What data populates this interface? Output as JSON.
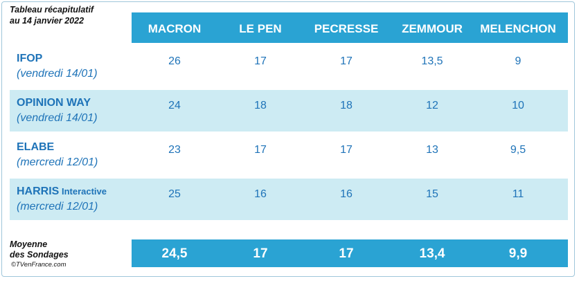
{
  "title_lines": [
    "Tableau récapitulatif",
    "au 14 janvier 2022"
  ],
  "candidates": [
    "MACRON",
    "LE PEN",
    "PECRESSE",
    "ZEMMOUR",
    "MELENCHON"
  ],
  "polls": [
    {
      "name": "IFOP",
      "name_suffix": "",
      "date": "(vendredi 14/01)",
      "values": [
        "26",
        "17",
        "17",
        "13,5",
        "9"
      ]
    },
    {
      "name": "OPINION WAY",
      "name_suffix": "",
      "date": "(vendredi 14/01)",
      "values": [
        "24",
        "18",
        "18",
        "12",
        "10"
      ]
    },
    {
      "name": "ELABE",
      "name_suffix": "",
      "date": "(mercredi 12/01)",
      "values": [
        "23",
        "17",
        "17",
        "13",
        "9,5"
      ]
    },
    {
      "name": "HARRIS",
      "name_suffix": " Interactive",
      "date": "(mercredi 12/01)",
      "values": [
        "25",
        "16",
        "16",
        "15",
        "11"
      ]
    }
  ],
  "average_label_lines": [
    "Moyenne",
    "des Sondages"
  ],
  "average_values": [
    "24,5",
    "17",
    "17",
    "13,4",
    "9,9"
  ],
  "credit": "©TVenFrance.com",
  "colors": {
    "header_bg": "#2aa3d3",
    "row_shade": "#cdebf3",
    "text_blue": "#1e73b8"
  },
  "chart_data": {
    "type": "table",
    "title": "Tableau récapitulatif au 14 janvier 2022",
    "columns": [
      "MACRON",
      "LE PEN",
      "PECRESSE",
      "ZEMMOUR",
      "MELENCHON"
    ],
    "rows": [
      {
        "label": "IFOP (vendredi 14/01)",
        "values": [
          26,
          17,
          17,
          13.5,
          9
        ]
      },
      {
        "label": "OPINION WAY (vendredi 14/01)",
        "values": [
          24,
          18,
          18,
          12,
          10
        ]
      },
      {
        "label": "ELABE (mercredi 12/01)",
        "values": [
          23,
          17,
          17,
          13,
          9.5
        ]
      },
      {
        "label": "HARRIS Interactive (mercredi 12/01)",
        "values": [
          25,
          16,
          16,
          15,
          11
        ]
      }
    ],
    "average": {
      "label": "Moyenne des Sondages",
      "values": [
        24.5,
        17,
        17,
        13.4,
        9.9
      ]
    }
  }
}
